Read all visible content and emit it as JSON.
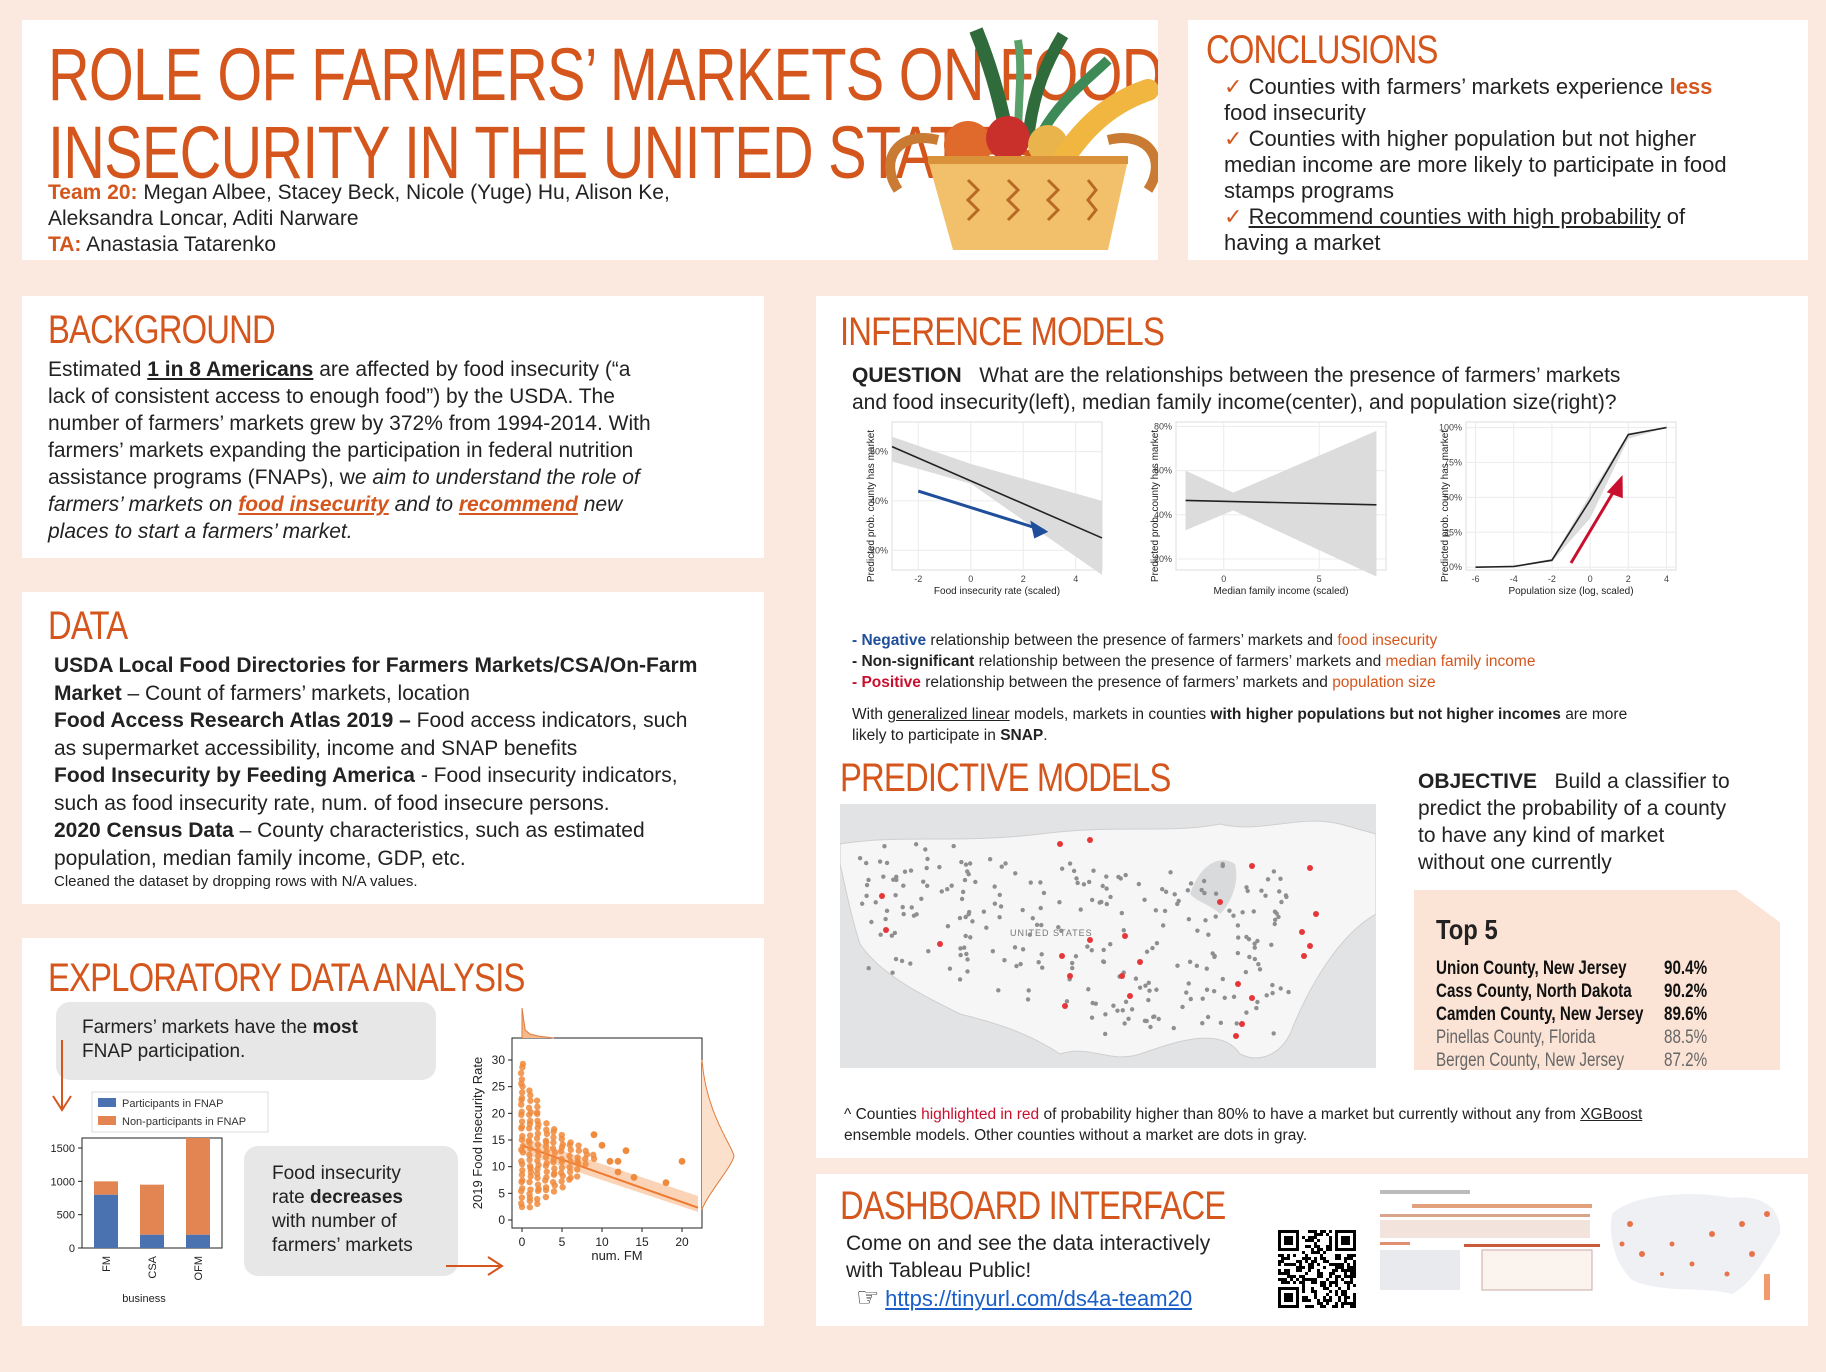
{
  "header": {
    "title_line1": "ROLE OF FARMERS’ MARKETS ON FOOD",
    "title_line2": "INSECURITY IN THE UNITED STATES",
    "team_label": "Team 20:",
    "team_members_line1": "Megan Albee,  Stacey Beck,  Nicole (Yuge) Hu,  Alison Ke,",
    "team_members_line2": "Aleksandra Loncar,  Aditi Narware",
    "ta_label": "TA:",
    "ta_name": "Anastasia Tatarenko"
  },
  "conclusions": {
    "title": "CONCLUSIONS",
    "item1_a": "Counties with farmers’ markets experience",
    "item1_b": "less",
    "item1_c": "food insecurity",
    "item2_a": "Counties with higher population but not higher",
    "item2_b": "median income are more likely to participate in food",
    "item2_c": "stamps programs",
    "item3_a": "Recommend counties with high probability",
    "item3_b": "of",
    "item3_c": "having a market",
    "check": "✓"
  },
  "background": {
    "title": "BACKGROUND",
    "l1a": "Estimated",
    "l1b": "1 in 8 Americans",
    "l1c": "are affected by food insecurity (“a",
    "l2": "lack of consistent access to enough food”) by the USDA. The",
    "l3": "number of farmers’ markets grew by 372% from 1994-2014. With",
    "l4": "farmers’ markets expanding the participation in federal nutrition",
    "l5a": "assistance programs (FNAPs), w",
    "l5b": "e aim to understand the role of",
    "l6a": "farmers’ markets on",
    "l6b": "food insecurity",
    "l6c": "and to",
    "l6d": "recommend",
    "l6e": "new",
    "l7": "places to start a farmers’ market."
  },
  "data_section": {
    "title": "DATA",
    "s1_bold1": "USDA Local Food Directories for Farmers Markets/CSA/On-Farm",
    "s1_bold2": "Market",
    "s1_rest": "– Count of farmers’ markets, location",
    "s2_bold": "Food Access Research Atlas 2019 –",
    "s2_rest1": "Food access indicators, such",
    "s2_rest2": "as supermarket accessibility, income and SNAP benefits",
    "s3_bold": "Food Insecurity by Feeding America",
    "s3_rest1": "- Food insecurity indicators,",
    "s3_rest2": "such as food insecurity rate, num. of food insecure persons.",
    "s4_bold": "2020 Census Data",
    "s4_rest1": "– County characteristics, such as estimated",
    "s4_rest2": "population, median family income, GDP, etc.",
    "note": "Cleaned the dataset by dropping rows with N/A values."
  },
  "eda": {
    "title": "EXPLORATORY DATA ANALYSIS",
    "callout1_a": "Farmers’ markets have the",
    "callout1_b": "most",
    "callout1_c": "FNAP participation.",
    "callout2_a": "Food insecurity",
    "callout2_b": "rate",
    "callout2_c": "decreases",
    "callout2_d": "with number of",
    "callout2_e": "farmers’ markets",
    "bar_chart": {
      "legend": [
        "Participants in FNAP",
        "Non-participants in FNAP"
      ],
      "colors": [
        "#4a72b0",
        "#e38552"
      ],
      "categories": [
        "FM",
        "CSA",
        "OFM"
      ],
      "participants": [
        800,
        200,
        200
      ],
      "non_participants": [
        200,
        750,
        1450
      ],
      "yticks": [
        "0",
        "500",
        "1000",
        "1500"
      ],
      "xlabel": "business"
    },
    "scatter": {
      "xlabel": "num. FM",
      "ylabel": "2019 Food Insecurity Rate",
      "yticks": [
        "0",
        "5",
        "10",
        "15",
        "20",
        "25",
        "30"
      ],
      "xticks": [
        "0",
        "5",
        "10",
        "15",
        "20"
      ]
    }
  },
  "inference": {
    "title": "INFERENCE MODELS",
    "question_label": "QUESTION",
    "question_l1": "What are the relationships between the presence of farmers’ markets",
    "question_l2": "and food insecurity(left), median family income(center), and population size(right)?",
    "chart1": {
      "ylabel": "Predicted prob. county has market",
      "xlabel": "Food insecurity rate (scaled)",
      "yticks": [
        "20%",
        "40%",
        "60%"
      ],
      "xticks": [
        "-2",
        "0",
        "2",
        "4"
      ]
    },
    "chart2": {
      "ylabel": "Predicted prob. county has market",
      "xlabel": "Median family income (scaled)",
      "yticks": [
        "20%",
        "40%",
        "60%",
        "80%"
      ],
      "xticks": [
        "0",
        "5"
      ]
    },
    "chart3": {
      "ylabel": "Predicted prob. county has market",
      "xlabel": "Population size (log, scaled)",
      "yticks": [
        "0%",
        "25%",
        "50%",
        "75%",
        "100%"
      ],
      "xticks": [
        "-6",
        "-4",
        "-2",
        "0",
        "2",
        "4"
      ]
    },
    "bullet1_a": "- Negative",
    "bullet1_b": "relationship between the presence of farmers’ markets and",
    "bullet1_c": "food insecurity",
    "bullet2_a": "- Non-significant",
    "bullet2_b": "relationship between the presence of farmers’ markets and",
    "bullet2_c": "median family income",
    "bullet3_a": "- Positive",
    "bullet3_b": "relationship between the presence of farmers’ markets and",
    "bullet3_c": "population size",
    "glm_a": "With",
    "glm_b": "generalized linear",
    "glm_c": "models, markets in counties",
    "glm_d": "with higher populations but not higher incomes",
    "glm_e": "are more",
    "glm_f": "likely to participate in",
    "glm_g": "SNAP",
    "glm_h": "."
  },
  "predictive": {
    "title": "PREDICTIVE MODELS",
    "objective_label": "OBJECTIVE",
    "objective_l1": "Build a classifier to",
    "objective_l2": "predict the probability of a county",
    "objective_l3": "to have any kind of market",
    "objective_l4": "without one currently",
    "map_label": "UNITED STATES",
    "top5_title": "Top 5",
    "top5": [
      {
        "county": "Union County, New Jersey",
        "pct": "90.4%"
      },
      {
        "county": "Cass County, North Dakota",
        "pct": "90.2%"
      },
      {
        "county": "Camden County, New Jersey",
        "pct": "89.6%"
      },
      {
        "county": "Pinellas County, Florida",
        "pct": "88.5%"
      },
      {
        "county": "Bergen County, New Jersey",
        "pct": "87.2%"
      }
    ],
    "note_a": "^ Counties",
    "note_b": "highlighted in red",
    "note_c": "of probability higher than 80% to have a market but currently without any from",
    "note_d": "XGBoost",
    "note_e": "ensemble models. Other counties without a market are dots in gray."
  },
  "dashboard": {
    "title": "DASHBOARD INTERFACE",
    "l1": "Come on and see the data interactively",
    "l2": "with Tableau Public!",
    "pointer": "☞",
    "link": "https://tinyurl.com/ds4a-team20"
  }
}
